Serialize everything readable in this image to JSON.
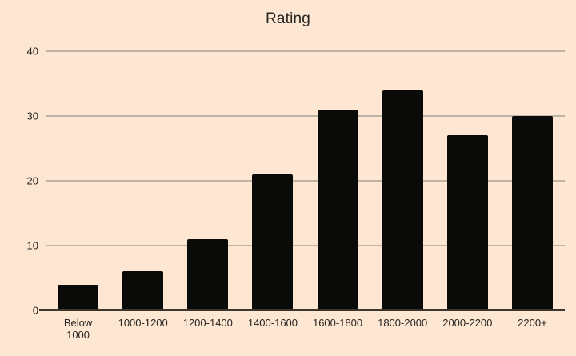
{
  "chart_data": {
    "type": "bar",
    "title": "Rating",
    "categories": [
      "Below\n1000",
      "1000-1200",
      "1200-1400",
      "1400-1600",
      "1600-1800",
      "1800-2000",
      "2000-2200",
      "2200+"
    ],
    "values": [
      4,
      6,
      11,
      21,
      31,
      34,
      27,
      30
    ],
    "xlabel": "",
    "ylabel": "",
    "ylim": [
      0,
      40
    ],
    "yticks": [
      0,
      10,
      20,
      30,
      40
    ],
    "grid": true,
    "legend": "none",
    "colors": {
      "background": "#fde7d3",
      "bar": "#0a0a08",
      "gridline": "#bfb4a5",
      "axis_line": "#3c362e",
      "text": "#272421"
    }
  }
}
